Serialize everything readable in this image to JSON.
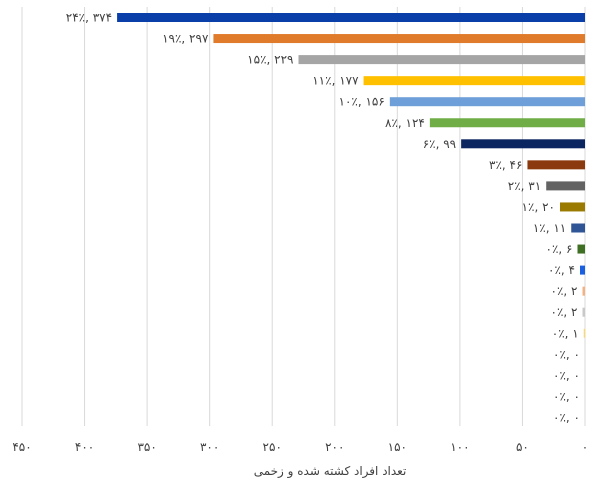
{
  "chart_data": {
    "type": "bar",
    "orientation": "horizontal",
    "x_axis_direction": "right-to-left",
    "xlabel": "تعداد افراد کشته شده و زخمی",
    "xlim": [
      0,
      450
    ],
    "x_ticks": [
      0,
      50,
      100,
      150,
      200,
      250,
      300,
      350,
      400,
      450
    ],
    "x_tick_labels": [
      "۰",
      "۵۰",
      "۱۰۰",
      "۱۵۰",
      "۲۰۰",
      "۲۵۰",
      "۳۰۰",
      "۳۵۰",
      "۴۰۰",
      "۴۵۰"
    ],
    "grid": true,
    "legend": "none",
    "bars": [
      {
        "value": 374,
        "label": "۲۴٪, ۳۷۴",
        "color": "#0a3ea8"
      },
      {
        "value": 297,
        "label": "۱۹٪, ۲۹۷",
        "color": "#e07b2c"
      },
      {
        "value": 229,
        "label": "۱۵٪, ۲۲۹",
        "color": "#a5a5a5"
      },
      {
        "value": 177,
        "label": "۱۱٪, ۱۷۷",
        "color": "#ffc000"
      },
      {
        "value": 156,
        "label": "۱۰٪, ۱۵۶",
        "color": "#6f9fd8"
      },
      {
        "value": 124,
        "label": "۸٪, ۱۲۴",
        "color": "#70ad47"
      },
      {
        "value": 99,
        "label": "۶٪, ۹۹",
        "color": "#0b2560"
      },
      {
        "value": 46,
        "label": "۳٪, ۴۶",
        "color": "#8b3a0f"
      },
      {
        "value": 31,
        "label": "۲٪, ۳۱",
        "color": "#636363"
      },
      {
        "value": 20,
        "label": "۱٪, ۲۰",
        "color": "#9a7a00"
      },
      {
        "value": 11,
        "label": "۱٪, ۱۱",
        "color": "#2f5597"
      },
      {
        "value": 6,
        "label": "۰٪, ۶",
        "color": "#3f6f23"
      },
      {
        "value": 4,
        "label": "۰٪, ۴",
        "color": "#1a5fe0"
      },
      {
        "value": 2,
        "label": "۰٪, ۲",
        "color": "#f4b183"
      },
      {
        "value": 2,
        "label": "۰٪, ۲",
        "color": "#c9c9c9"
      },
      {
        "value": 1,
        "label": "۰٪, ۱",
        "color": "#ffd966"
      },
      {
        "value": 0,
        "label": "۰٪, ۰",
        "color": "#9dc3e6"
      },
      {
        "value": 0,
        "label": "۰٪, ۰",
        "color": "#a9d18e"
      },
      {
        "value": 0,
        "label": "۰٪, ۰",
        "color": "#203864"
      },
      {
        "value": 0,
        "label": "۰٪, ۰",
        "color": "#843c0c"
      }
    ]
  }
}
